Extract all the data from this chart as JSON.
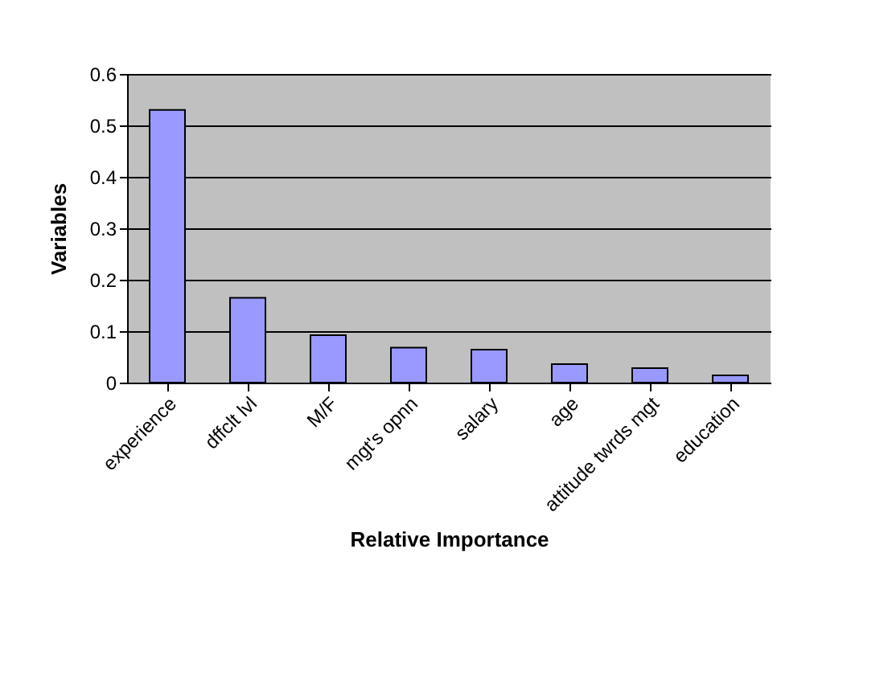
{
  "chart_data": {
    "type": "bar",
    "xlabel": "Relative Importance",
    "ylabel": "Variables",
    "categories": [
      "experience",
      "dffclt lvl",
      "M/F",
      "mgt's opnn",
      "salary",
      "age",
      "attitude twrds mgt",
      "education"
    ],
    "values": [
      0.53,
      0.165,
      0.092,
      0.068,
      0.064,
      0.036,
      0.028,
      0.014
    ],
    "color": "#9999ff",
    "ylim": [
      0,
      0.6
    ],
    "yticks": [
      0,
      0.1,
      0.2,
      0.3,
      0.4,
      0.5,
      0.6
    ],
    "grid": "y"
  }
}
